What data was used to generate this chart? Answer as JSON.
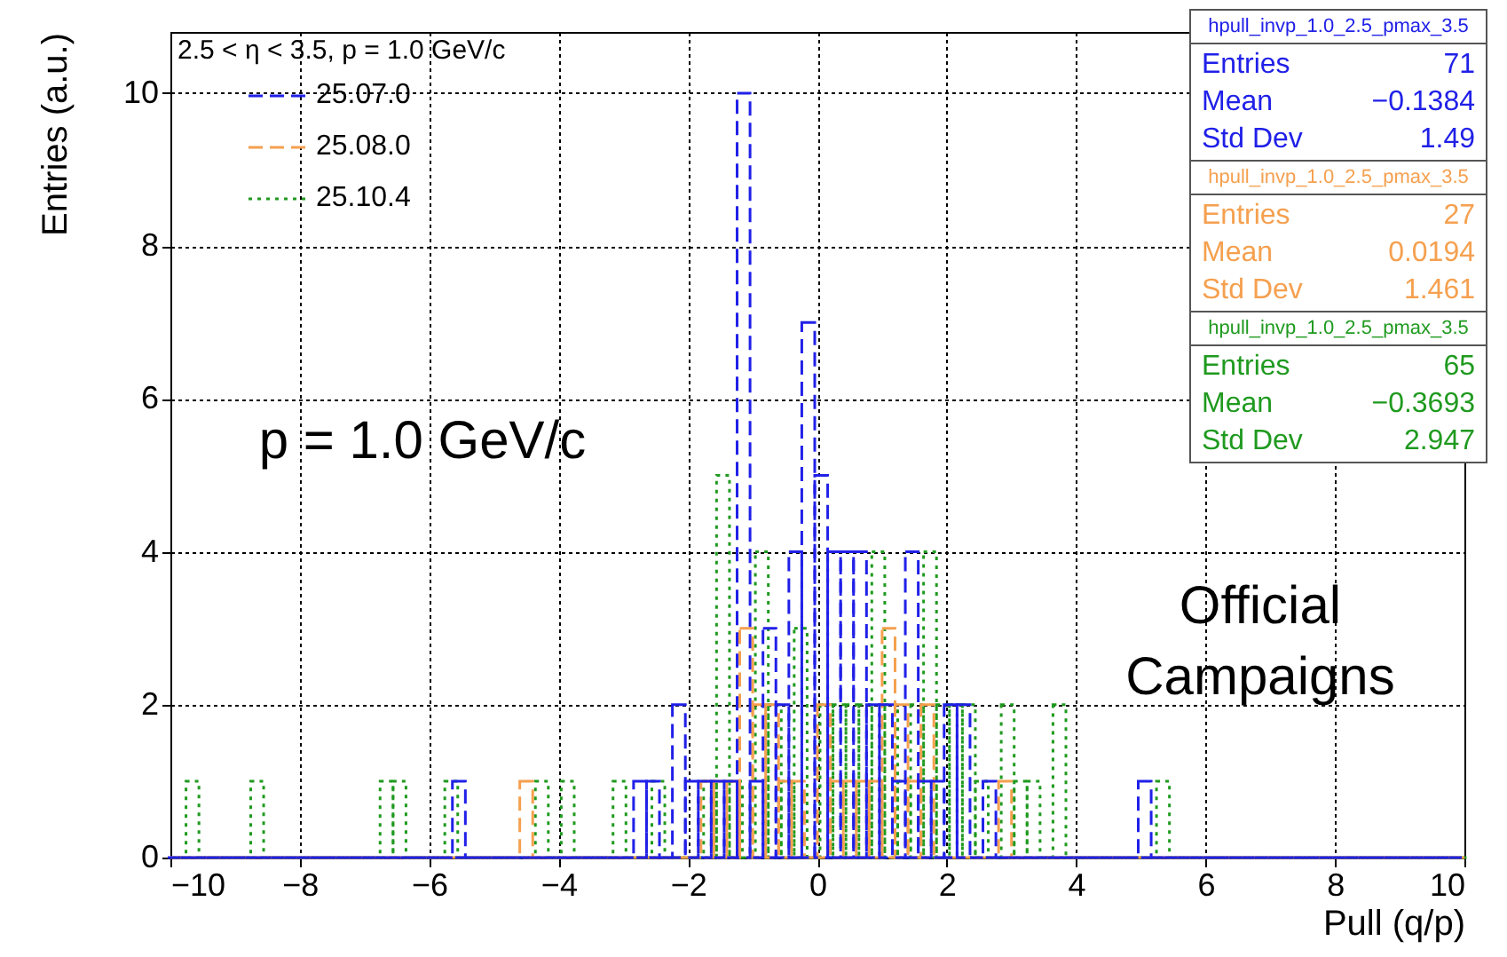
{
  "chart_data": {
    "type": "histogram",
    "legend_title": "2.5 < η < 3.5, p = 1.0 GeV/c",
    "xlabel": "Pull (q/p)",
    "ylabel": "Entries (a.u.)",
    "bins": [
      -10,
      -9.8,
      -9.6,
      -9.4,
      -9.2,
      -9,
      -8.8,
      -8.6,
      -8.4,
      -8.2,
      -8,
      -7.8,
      -7.6,
      -7.4,
      -7.2,
      -7,
      -6.8,
      -6.6,
      -6.4,
      -6.2,
      -6,
      -5.8,
      -5.6,
      -5.4,
      -5.2,
      -5,
      -4.8,
      -4.6,
      -4.4,
      -4.2,
      -4,
      -3.8,
      -3.6,
      -3.4,
      -3.2,
      -3,
      -2.8,
      -2.6,
      -2.4,
      -2.2,
      -2,
      -1.8,
      -1.6,
      -1.4,
      -1.2,
      -1,
      -0.8,
      -0.6,
      -0.4,
      -0.2,
      0,
      0.2,
      0.4,
      0.6,
      0.8,
      1,
      1.2,
      1.4,
      1.6,
      1.8,
      2,
      2.2,
      2.4,
      2.6,
      2.8,
      3,
      3.2,
      3.4,
      3.6,
      3.8,
      4,
      4.2,
      4.4,
      4.6,
      4.8,
      5,
      5.2,
      5.4,
      5.6,
      5.8,
      6,
      6.2,
      6.4,
      6.6,
      6.8,
      7,
      7.2,
      7.4,
      7.6,
      7.8,
      8,
      8.2,
      8.4,
      8.6,
      8.8,
      9,
      9.2,
      9.4,
      9.6,
      9.8,
      10
    ],
    "series": [
      {
        "name": "25.07.0",
        "color": "#2020e8",
        "line_style": "dashed",
        "values": [
          0,
          0,
          0,
          0,
          0,
          0,
          0,
          0,
          0,
          0,
          0,
          0,
          0,
          0,
          0,
          0,
          0,
          0,
          0,
          0,
          0,
          0,
          1,
          0,
          0,
          0,
          0,
          0,
          0,
          0,
          0,
          0,
          0,
          0,
          0,
          0,
          1,
          1,
          0,
          2,
          1,
          1,
          1,
          1,
          10,
          1,
          3,
          2,
          4,
          7,
          5,
          4,
          4,
          4,
          2,
          2,
          1,
          4,
          1,
          1,
          2,
          2,
          0,
          1,
          0,
          0,
          0,
          0,
          0,
          0,
          0,
          0,
          0,
          0,
          0,
          1,
          0,
          0,
          0,
          0,
          0,
          0,
          0,
          0,
          0,
          0,
          0,
          0,
          0,
          0,
          0,
          0,
          0,
          0,
          0,
          0,
          0,
          0,
          0,
          0
        ]
      },
      {
        "name": "25.08.0",
        "color": "#f5a04f",
        "line_style": "dashed",
        "values": [
          0,
          0,
          0,
          0,
          0,
          0,
          0,
          0,
          0,
          0,
          0,
          0,
          0,
          0,
          0,
          0,
          0,
          0,
          0,
          0,
          0,
          0,
          0,
          0,
          0,
          0,
          0,
          1,
          0,
          0,
          0,
          0,
          0,
          0,
          0,
          0,
          0,
          0,
          0,
          0,
          0,
          1,
          1,
          1,
          3,
          2,
          2,
          1,
          1,
          0,
          2,
          1,
          1,
          1,
          1,
          3,
          2,
          1,
          2,
          0,
          0,
          0,
          0,
          0,
          1,
          0,
          0,
          0,
          0,
          0,
          0,
          0,
          0,
          0,
          0,
          0,
          0,
          0,
          0,
          0,
          0,
          0,
          0,
          0,
          0,
          0,
          0,
          0,
          0,
          0,
          0,
          0,
          0,
          0,
          0,
          0,
          0,
          0,
          0,
          0
        ]
      },
      {
        "name": "25.10.4",
        "color": "#1f9a1f",
        "line_style": "dotted",
        "values": [
          0,
          1,
          0,
          0,
          0,
          0,
          1,
          0,
          0,
          0,
          0,
          0,
          0,
          0,
          0,
          0,
          1,
          1,
          0,
          0,
          0,
          1,
          0,
          0,
          0,
          0,
          0,
          0,
          1,
          0,
          1,
          0,
          0,
          0,
          1,
          0,
          0,
          1,
          0,
          0,
          0,
          1,
          5,
          1,
          0,
          4,
          2,
          1,
          3,
          0,
          2,
          2,
          2,
          2,
          4,
          2,
          1,
          2,
          4,
          2,
          2,
          2,
          1,
          0,
          2,
          1,
          1,
          0,
          2,
          0,
          0,
          0,
          0,
          0,
          0,
          0,
          1,
          0,
          0,
          0,
          0,
          0,
          0,
          0,
          0,
          0,
          0,
          0,
          0,
          0,
          0,
          0,
          0,
          0,
          0,
          0,
          0,
          0,
          0,
          0
        ]
      }
    ],
    "xlim": [
      -10,
      10
    ],
    "xticks": [
      -10,
      -8,
      -6,
      -4,
      -2,
      0,
      2,
      4,
      6,
      8,
      10
    ],
    "ylim": [
      0,
      10.8
    ],
    "yticks": [
      0,
      2,
      4,
      6,
      8,
      10
    ],
    "grid": true,
    "legend": "top left",
    "annotations": [
      "p = 1.0 GeV/c",
      "Official Campaigns",
      "hpull_invp_1.0_2.5_pmax_3.5",
      "Entries 71",
      "Mean −0.1384",
      "Std Dev 1.49",
      "hpull_invp_1.0_2.5_pmax_3.5",
      "Entries 27",
      "Mean 0.0194",
      "Std Dev 1.461",
      "hpull_invp_1.0_2.5_pmax_3.5",
      "Entries 65",
      "Mean −0.3693",
      "Std Dev 2.947"
    ]
  }
}
